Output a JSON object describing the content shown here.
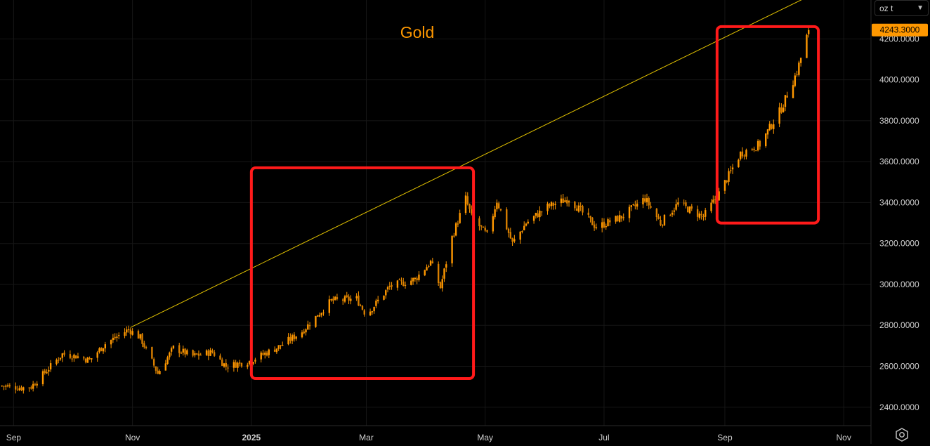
{
  "unit_select": {
    "value": "oz t",
    "chevron": "chevron-down-icon"
  },
  "settings": {
    "icon": "settings-gear-icon"
  },
  "chart_data": {
    "type": "candlestick",
    "title": "Gold",
    "last_price_label": "4243.3000",
    "colors": {
      "candle": "#ff9800",
      "wick": "#ff9800",
      "trendline": "#e2c200",
      "highlight_box": "#ff1a1a",
      "title": "#ff9800",
      "background": "#000000",
      "grid": "#161616",
      "last_price_bg": "#ff9800"
    },
    "ylim": [
      2310,
      4390
    ],
    "y_ticks": [
      2400,
      2600,
      2800,
      3000,
      3200,
      3400,
      3600,
      3800,
      4000,
      4200
    ],
    "y_tick_labels": [
      "2400.0000",
      "2600.0000",
      "2800.0000",
      "3000.0000",
      "3200.0000",
      "3400.0000",
      "3600.0000",
      "3800.0000",
      "4000.0000",
      "4200.0000"
    ],
    "x_range": [
      "2024-08-25",
      "2025-11-15"
    ],
    "x_ticks": [
      {
        "date": "2024-09-01",
        "label": "Sep"
      },
      {
        "date": "2024-11-01",
        "label": "Nov"
      },
      {
        "date": "2025-01-01",
        "label": "2025"
      },
      {
        "date": "2025-03-01",
        "label": "Mar"
      },
      {
        "date": "2025-05-01",
        "label": "May"
      },
      {
        "date": "2025-07-01",
        "label": "Jul"
      },
      {
        "date": "2025-09-01",
        "label": "Sep"
      },
      {
        "date": "2025-11-01",
        "label": "Nov"
      }
    ],
    "price_path": [
      [
        "2024-08-25",
        2505
      ],
      [
        "2024-09-05",
        2495
      ],
      [
        "2024-09-10",
        2500
      ],
      [
        "2024-09-18",
        2580
      ],
      [
        "2024-09-26",
        2660
      ],
      [
        "2024-10-03",
        2650
      ],
      [
        "2024-10-10",
        2630
      ],
      [
        "2024-10-18",
        2710
      ],
      [
        "2024-10-30",
        2780
      ],
      [
        "2024-11-05",
        2740
      ],
      [
        "2024-11-14",
        2565
      ],
      [
        "2024-11-22",
        2690
      ],
      [
        "2024-12-02",
        2650
      ],
      [
        "2024-12-12",
        2670
      ],
      [
        "2024-12-19",
        2600
      ],
      [
        "2024-12-31",
        2625
      ],
      [
        "2025-01-15",
        2695
      ],
      [
        "2025-01-27",
        2770
      ],
      [
        "2025-02-11",
        2920
      ],
      [
        "2025-02-24",
        2930
      ],
      [
        "2025-03-01",
        2850
      ],
      [
        "2025-03-13",
        2990
      ],
      [
        "2025-03-26",
        3025
      ],
      [
        "2025-04-03",
        3110
      ],
      [
        "2025-04-08",
        2985
      ],
      [
        "2025-04-14",
        3230
      ],
      [
        "2025-04-21",
        3420
      ],
      [
        "2025-04-24",
        3330
      ],
      [
        "2025-05-02",
        3240
      ],
      [
        "2025-05-07",
        3410
      ],
      [
        "2025-05-15",
        3200
      ],
      [
        "2025-05-22",
        3300
      ],
      [
        "2025-06-02",
        3380
      ],
      [
        "2025-06-13",
        3420
      ],
      [
        "2025-06-27",
        3280
      ],
      [
        "2025-07-10",
        3330
      ],
      [
        "2025-07-22",
        3420
      ],
      [
        "2025-07-30",
        3300
      ],
      [
        "2025-08-08",
        3395
      ],
      [
        "2025-08-21",
        3330
      ],
      [
        "2025-08-29",
        3445
      ],
      [
        "2025-09-09",
        3640
      ],
      [
        "2025-09-19",
        3685
      ],
      [
        "2025-09-30",
        3860
      ],
      [
        "2025-10-08",
        4040
      ],
      [
        "2025-10-14",
        4243
      ]
    ],
    "trendline": {
      "start": [
        "2024-10-31",
        2790
      ],
      "end": [
        "2025-11-20",
        4580
      ]
    },
    "highlight_boxes": [
      {
        "from": "2025-01-01",
        "to": "2025-04-25",
        "low": 2540,
        "high": 3570
      },
      {
        "from": "2025-08-28",
        "to": "2025-10-19",
        "low": 3300,
        "high": 4260
      }
    ]
  }
}
